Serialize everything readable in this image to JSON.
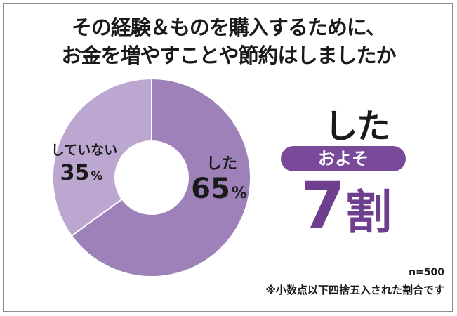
{
  "title_line1": "その経験＆ものを購入するために、",
  "title_line2": "お金を増やすことや節約はしましたか",
  "chart_data": {
    "type": "pie",
    "donut": true,
    "slices": [
      {
        "label": "した",
        "value": 65,
        "value_text": "65",
        "unit": "%",
        "color": "#9d81b8"
      },
      {
        "label": "していない",
        "value": 35,
        "value_text": "35",
        "unit": "%",
        "color": "#bca7d0"
      }
    ]
  },
  "answer": {
    "title": "した",
    "pill_label": "およそ",
    "value": "7",
    "unit": "割",
    "pill_color": "#7a4a9a",
    "value_color": "#6e3f8f"
  },
  "notes": {
    "sample_size": "n=500",
    "rounding": "※小数点以下四捨五入された割合です"
  }
}
